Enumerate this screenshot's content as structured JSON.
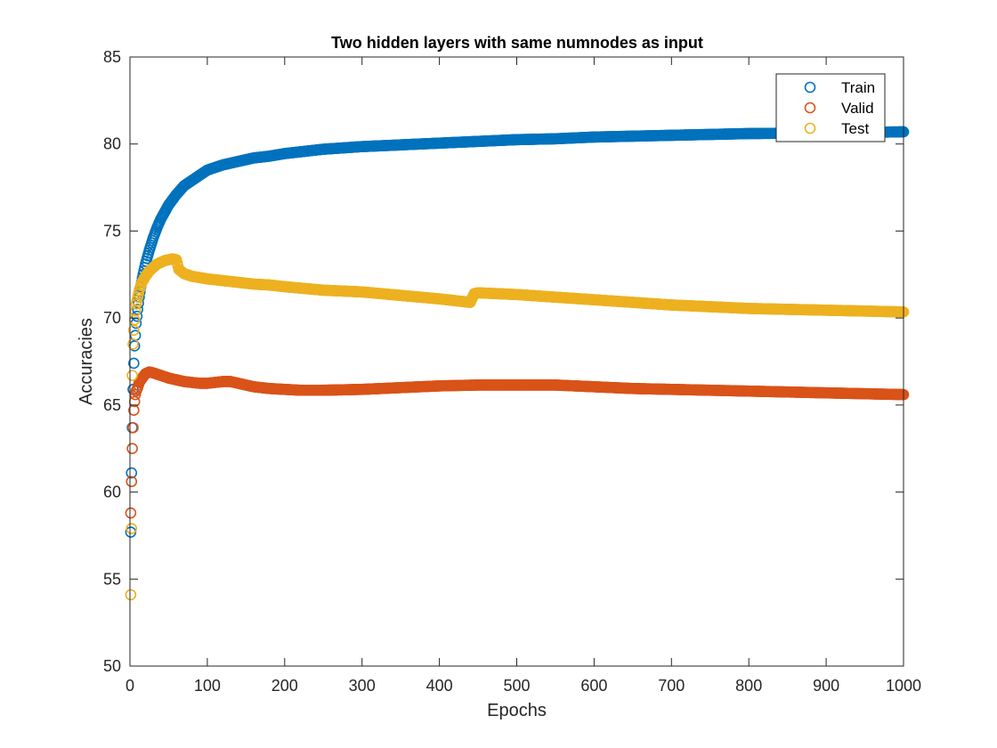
{
  "chart_data": {
    "type": "scatter",
    "title": "Two hidden layers with same numnodes as input",
    "xlabel": "Epochs",
    "ylabel": "Accuracies",
    "xlim": [
      0,
      1000
    ],
    "ylim": [
      50,
      85
    ],
    "xticks": [
      0,
      100,
      200,
      300,
      400,
      500,
      600,
      700,
      800,
      900,
      1000
    ],
    "yticks": [
      50,
      55,
      60,
      65,
      70,
      75,
      80,
      85
    ],
    "grid": false,
    "legend_position": "top-right",
    "marker": "open-circle",
    "series": [
      {
        "name": "Train",
        "color": "#0072BD",
        "points": [
          [
            1,
            57.7
          ],
          [
            2,
            61.1
          ],
          [
            3,
            63.7
          ],
          [
            4,
            65.9
          ],
          [
            5,
            67.4
          ],
          [
            6,
            68.4
          ],
          [
            7,
            69.0
          ],
          [
            8,
            69.7
          ],
          [
            9,
            70.1
          ],
          [
            10,
            70.5
          ],
          [
            12,
            71.2
          ],
          [
            14,
            71.8
          ],
          [
            16,
            72.3
          ],
          [
            18,
            72.7
          ],
          [
            20,
            73.1
          ],
          [
            25,
            73.9
          ],
          [
            30,
            74.6
          ],
          [
            35,
            75.2
          ],
          [
            40,
            75.7
          ],
          [
            45,
            76.1
          ],
          [
            50,
            76.5
          ],
          [
            60,
            77.1
          ],
          [
            70,
            77.6
          ],
          [
            80,
            77.9
          ],
          [
            90,
            78.2
          ],
          [
            100,
            78.5
          ],
          [
            120,
            78.8
          ],
          [
            140,
            79.0
          ],
          [
            160,
            79.2
          ],
          [
            180,
            79.3
          ],
          [
            200,
            79.45
          ],
          [
            250,
            79.7
          ],
          [
            300,
            79.85
          ],
          [
            350,
            79.95
          ],
          [
            400,
            80.05
          ],
          [
            450,
            80.15
          ],
          [
            500,
            80.25
          ],
          [
            550,
            80.3
          ],
          [
            600,
            80.4
          ],
          [
            650,
            80.45
          ],
          [
            700,
            80.5
          ],
          [
            750,
            80.55
          ],
          [
            800,
            80.6
          ],
          [
            850,
            80.62
          ],
          [
            900,
            80.65
          ],
          [
            950,
            80.67
          ],
          [
            1000,
            80.7
          ]
        ]
      },
      {
        "name": "Valid",
        "color": "#D95319",
        "points": [
          [
            1,
            58.8
          ],
          [
            2,
            60.6
          ],
          [
            3,
            62.5
          ],
          [
            4,
            63.7
          ],
          [
            5,
            64.7
          ],
          [
            6,
            65.2
          ],
          [
            7,
            65.6
          ],
          [
            8,
            65.8
          ],
          [
            10,
            66.0
          ],
          [
            12,
            66.3
          ],
          [
            15,
            66.5
          ],
          [
            20,
            66.8
          ],
          [
            25,
            66.9
          ],
          [
            30,
            66.85
          ],
          [
            40,
            66.7
          ],
          [
            50,
            66.55
          ],
          [
            60,
            66.45
          ],
          [
            70,
            66.35
          ],
          [
            80,
            66.3
          ],
          [
            90,
            66.25
          ],
          [
            100,
            66.25
          ],
          [
            110,
            66.3
          ],
          [
            120,
            66.35
          ],
          [
            130,
            66.35
          ],
          [
            140,
            66.25
          ],
          [
            160,
            66.05
          ],
          [
            180,
            65.95
          ],
          [
            200,
            65.9
          ],
          [
            220,
            65.85
          ],
          [
            250,
            65.85
          ],
          [
            300,
            65.9
          ],
          [
            350,
            66.0
          ],
          [
            400,
            66.1
          ],
          [
            450,
            66.15
          ],
          [
            500,
            66.15
          ],
          [
            550,
            66.15
          ],
          [
            600,
            66.05
          ],
          [
            650,
            65.95
          ],
          [
            700,
            65.9
          ],
          [
            750,
            65.85
          ],
          [
            800,
            65.8
          ],
          [
            850,
            65.75
          ],
          [
            900,
            65.7
          ],
          [
            950,
            65.65
          ],
          [
            1000,
            65.6
          ]
        ]
      },
      {
        "name": "Test",
        "color": "#EDB120",
        "points": [
          [
            1,
            54.1
          ],
          [
            2,
            57.9
          ],
          [
            3,
            66.7
          ],
          [
            4,
            68.5
          ],
          [
            5,
            69.3
          ],
          [
            6,
            69.9
          ],
          [
            7,
            70.4
          ],
          [
            8,
            70.8
          ],
          [
            10,
            71.2
          ],
          [
            12,
            71.6
          ],
          [
            15,
            72.0
          ],
          [
            20,
            72.4
          ],
          [
            25,
            72.7
          ],
          [
            30,
            72.9
          ],
          [
            35,
            73.1
          ],
          [
            40,
            73.2
          ],
          [
            45,
            73.3
          ],
          [
            50,
            73.35
          ],
          [
            55,
            73.4
          ],
          [
            60,
            73.35
          ],
          [
            63,
            72.8
          ],
          [
            70,
            72.55
          ],
          [
            80,
            72.4
          ],
          [
            100,
            72.25
          ],
          [
            120,
            72.15
          ],
          [
            140,
            72.05
          ],
          [
            160,
            71.95
          ],
          [
            180,
            71.9
          ],
          [
            200,
            71.8
          ],
          [
            250,
            71.6
          ],
          [
            300,
            71.5
          ],
          [
            350,
            71.3
          ],
          [
            400,
            71.1
          ],
          [
            440,
            70.9
          ],
          [
            445,
            71.4
          ],
          [
            450,
            71.45
          ],
          [
            500,
            71.35
          ],
          [
            550,
            71.2
          ],
          [
            600,
            71.05
          ],
          [
            650,
            70.9
          ],
          [
            700,
            70.75
          ],
          [
            750,
            70.65
          ],
          [
            800,
            70.55
          ],
          [
            850,
            70.5
          ],
          [
            900,
            70.45
          ],
          [
            950,
            70.4
          ],
          [
            1000,
            70.35
          ]
        ]
      }
    ]
  }
}
